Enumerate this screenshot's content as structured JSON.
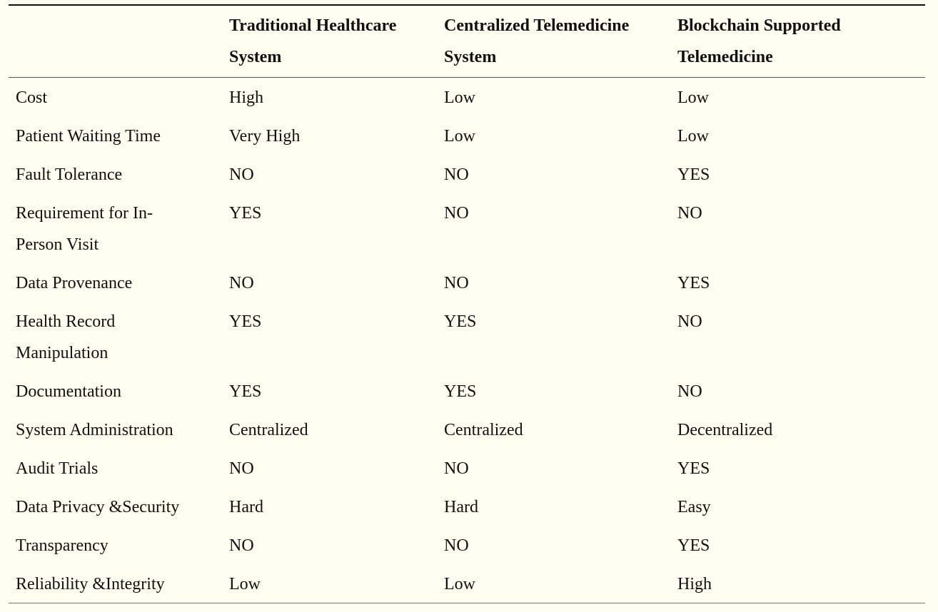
{
  "table": {
    "headers": [
      "",
      "Traditional Healthcare System",
      "Centralized Telemedicine System",
      "Blockchain Supported Telemedicine"
    ],
    "header_lines": [
      [
        "",
        ""
      ],
      [
        "Traditional Healthcare",
        "System"
      ],
      [
        "Centralized Telemedicine",
        "System"
      ],
      [
        "Blockchain Supported",
        "Telemedicine"
      ]
    ],
    "rows": [
      {
        "feature": "Cost",
        "feature_lines": [
          "Cost"
        ],
        "traditional": "High",
        "centralized": "Low",
        "blockchain": "Low"
      },
      {
        "feature": "Patient Waiting Time",
        "feature_lines": [
          "Patient Waiting Time"
        ],
        "traditional": "Very High",
        "centralized": "Low",
        "blockchain": "Low"
      },
      {
        "feature": "Fault Tolerance",
        "feature_lines": [
          "Fault Tolerance"
        ],
        "traditional": "NO",
        "centralized": "NO",
        "blockchain": "YES"
      },
      {
        "feature": "Requirement for In-Person Visit",
        "feature_lines": [
          "Requirement for In-",
          "Person Visit"
        ],
        "traditional": "YES",
        "centralized": "NO",
        "blockchain": "NO"
      },
      {
        "feature": "Data Provenance",
        "feature_lines": [
          "Data Provenance"
        ],
        "traditional": "NO",
        "centralized": "NO",
        "blockchain": "YES"
      },
      {
        "feature": "Health Record Manipulation",
        "feature_lines": [
          "Health Record",
          "Manipulation"
        ],
        "traditional": "YES",
        "centralized": "YES",
        "blockchain": "NO"
      },
      {
        "feature": "Documentation",
        "feature_lines": [
          "Documentation"
        ],
        "traditional": "YES",
        "centralized": "YES",
        "blockchain": "NO"
      },
      {
        "feature": "System Administration",
        "feature_lines": [
          "System Administration"
        ],
        "traditional": "Centralized",
        "centralized": "Centralized",
        "blockchain": "Decentralized"
      },
      {
        "feature": "Audit Trials",
        "feature_lines": [
          "Audit Trials"
        ],
        "traditional": "NO",
        "centralized": "NO",
        "blockchain": "YES"
      },
      {
        "feature": "Data Privacy &Security",
        "feature_lines": [
          "Data Privacy &Security"
        ],
        "traditional": "Hard",
        "centralized": "Hard",
        "blockchain": "Easy"
      },
      {
        "feature": "Transparency",
        "feature_lines": [
          "Transparency"
        ],
        "traditional": "NO",
        "centralized": "NO",
        "blockchain": "YES"
      },
      {
        "feature": "Reliability &Integrity",
        "feature_lines": [
          "Reliability &Integrity"
        ],
        "traditional": "Low",
        "centralized": "Low",
        "blockchain": "High"
      }
    ]
  }
}
